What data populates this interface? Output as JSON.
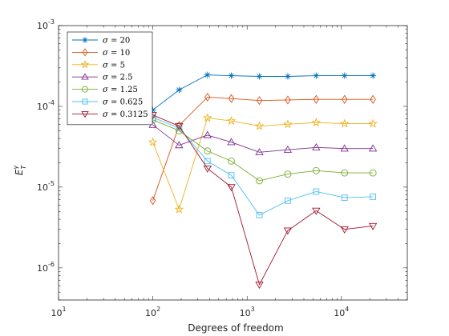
{
  "chart_data": {
    "type": "line",
    "xscale": "log",
    "yscale": "log",
    "xlim": [
      10,
      50000
    ],
    "ylim": [
      4e-07,
      0.001
    ],
    "xlabel": "Degrees of freedom",
    "ylabel": "E_T^γ",
    "ylabel_base": "E",
    "ylabel_sub": "T",
    "ylabel_sup": "γ",
    "legend_position": "top-left",
    "x_ticks": [
      {
        "value": 10,
        "base": "10",
        "exp": "1"
      },
      {
        "value": 100,
        "base": "10",
        "exp": "2"
      },
      {
        "value": 1000,
        "base": "10",
        "exp": "3"
      },
      {
        "value": 10000,
        "base": "10",
        "exp": "4"
      }
    ],
    "y_ticks": [
      {
        "value": 1e-06,
        "base": "10",
        "exp": "-6"
      },
      {
        "value": 1e-05,
        "base": "10",
        "exp": "-5"
      },
      {
        "value": 0.0001,
        "base": "10",
        "exp": "-4"
      },
      {
        "value": 0.001,
        "base": "10",
        "exp": "-3"
      }
    ],
    "x": [
      100,
      190,
      380,
      680,
      1350,
      2700,
      5400,
      10800,
      21600
    ],
    "series": [
      {
        "name": "σ = 20",
        "sym": "σ",
        "num": "20",
        "color": "#0072bd",
        "marker": "asterisk",
        "values": [
          9e-05,
          0.00016,
          0.000245,
          0.00024,
          0.000235,
          0.000235,
          0.00024,
          0.00024,
          0.00024
        ]
      },
      {
        "name": "σ = 10",
        "sym": "σ",
        "num": "10",
        "color": "#d95319",
        "marker": "diamond",
        "values": [
          6.8e-06,
          5.8e-05,
          0.00013,
          0.000125,
          0.000118,
          0.00012,
          0.000122,
          0.000122,
          0.000122
        ]
      },
      {
        "name": "σ = 5",
        "sym": "σ",
        "num": "5",
        "color": "#edb120",
        "marker": "star",
        "values": [
          3.6e-05,
          5.3e-06,
          7.2e-05,
          6.6e-05,
          5.7e-05,
          6e-05,
          6.3e-05,
          6.1e-05,
          6.1e-05
        ]
      },
      {
        "name": "σ = 2.5",
        "sym": "σ",
        "num": "2.5",
        "color": "#7e2f8e",
        "marker": "triangle-up",
        "values": [
          5.9e-05,
          3.3e-05,
          4.4e-05,
          3.6e-05,
          2.7e-05,
          2.9e-05,
          3.1e-05,
          3e-05,
          3e-05
        ]
      },
      {
        "name": "σ = 1.25",
        "sym": "σ",
        "num": "1.25",
        "color": "#77ac30",
        "marker": "circle",
        "values": [
          6.8e-05,
          5e-05,
          2.8e-05,
          2.1e-05,
          1.2e-05,
          1.45e-05,
          1.6e-05,
          1.5e-05,
          1.5e-05
        ]
      },
      {
        "name": "σ = 0.625",
        "sym": "σ",
        "num": "0.625",
        "color": "#4dbeee",
        "marker": "square",
        "values": [
          7.3e-05,
          5.4e-05,
          2.1e-05,
          1.4e-05,
          4.5e-06,
          6.8e-06,
          8.8e-06,
          7.4e-06,
          7.6e-06
        ]
      },
      {
        "name": "σ = 0.3125",
        "sym": "σ",
        "num": "0.3125",
        "color": "#a2142f",
        "marker": "triangle-down",
        "values": [
          7.8e-05,
          5.7e-05,
          1.7e-05,
          1e-05,
          6.2e-07,
          2.9e-06,
          5.1e-06,
          3e-06,
          3.3e-06
        ]
      }
    ]
  }
}
